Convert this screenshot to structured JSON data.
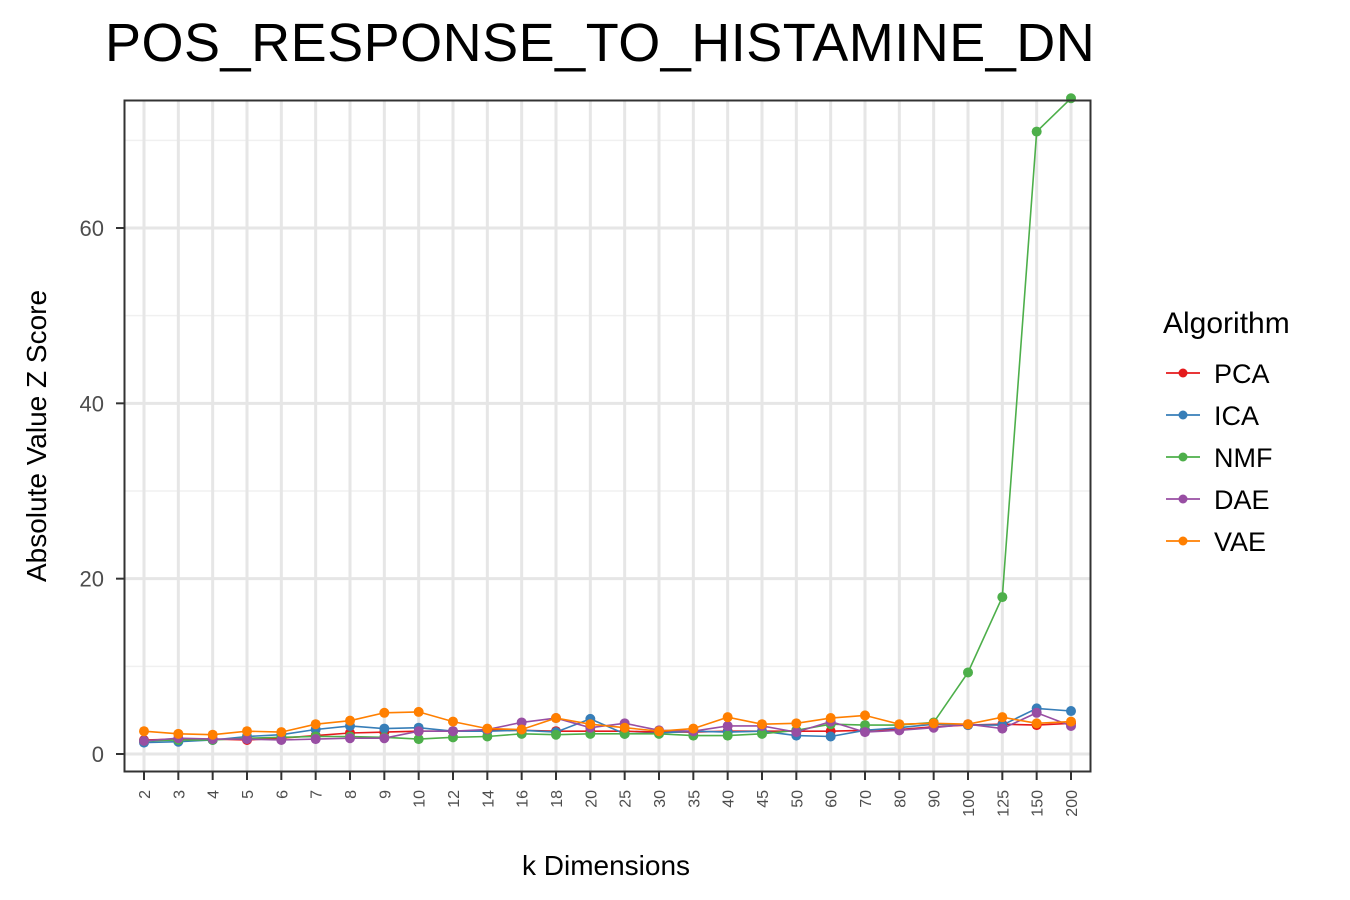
{
  "chart_data": {
    "type": "line",
    "title": "POS_RESPONSE_TO_HISTAMINE_DN",
    "xlabel": "k Dimensions",
    "ylabel": "Absolute Value Z Score",
    "categories": [
      "2",
      "3",
      "4",
      "5",
      "6",
      "7",
      "8",
      "9",
      "10",
      "12",
      "14",
      "16",
      "18",
      "20",
      "25",
      "30",
      "35",
      "40",
      "45",
      "50",
      "60",
      "70",
      "80",
      "90",
      "100",
      "125",
      "150",
      "200"
    ],
    "y_ticks": [
      0,
      20,
      40,
      60
    ],
    "ylim": [
      -2,
      75
    ],
    "grid": true,
    "legend": {
      "title": "Algorithm",
      "position": "right"
    },
    "series": [
      {
        "name": "PCA",
        "color": "#e41a1c",
        "values": [
          1.6,
          1.7,
          1.7,
          1.6,
          1.8,
          2.1,
          2.4,
          2.5,
          2.6,
          2.6,
          2.7,
          2.7,
          2.6,
          2.6,
          2.6,
          2.5,
          2.5,
          2.6,
          2.6,
          2.6,
          2.6,
          2.7,
          2.8,
          3.1,
          3.3,
          3.4,
          3.3,
          3.5
        ]
      },
      {
        "name": "ICA",
        "color": "#377eb8",
        "values": [
          1.3,
          1.4,
          1.6,
          2.0,
          2.2,
          2.8,
          3.2,
          2.9,
          3.0,
          2.6,
          2.6,
          2.7,
          2.5,
          4.0,
          2.3,
          2.4,
          2.6,
          2.5,
          2.6,
          2.1,
          2.0,
          2.7,
          3.0,
          3.4,
          3.3,
          3.3,
          5.2,
          4.9
        ]
      },
      {
        "name": "NMF",
        "color": "#4daf4a",
        "values": [
          1.5,
          1.6,
          1.6,
          1.8,
          1.9,
          2.0,
          2.0,
          1.9,
          1.7,
          1.9,
          2.0,
          2.3,
          2.2,
          2.3,
          2.3,
          2.3,
          2.1,
          2.1,
          2.3,
          2.7,
          3.4,
          3.3,
          3.3,
          3.6,
          9.3,
          17.9,
          71.0,
          74.8
        ]
      },
      {
        "name": "DAE",
        "color": "#984ea3",
        "values": [
          1.5,
          1.8,
          1.7,
          1.7,
          1.6,
          1.7,
          1.8,
          1.8,
          2.6,
          2.6,
          2.8,
          3.6,
          4.1,
          3.0,
          3.5,
          2.7,
          2.6,
          3.2,
          3.2,
          2.5,
          3.7,
          2.5,
          2.7,
          3.0,
          3.4,
          2.9,
          4.7,
          3.2
        ]
      },
      {
        "name": "VAE",
        "color": "#ff7f00",
        "values": [
          2.6,
          2.3,
          2.2,
          2.6,
          2.5,
          3.4,
          3.8,
          4.7,
          4.8,
          3.7,
          2.9,
          2.8,
          4.1,
          3.4,
          3.0,
          2.6,
          2.9,
          4.2,
          3.4,
          3.5,
          4.1,
          4.4,
          3.4,
          3.5,
          3.4,
          4.2,
          3.5,
          3.7
        ]
      }
    ]
  }
}
